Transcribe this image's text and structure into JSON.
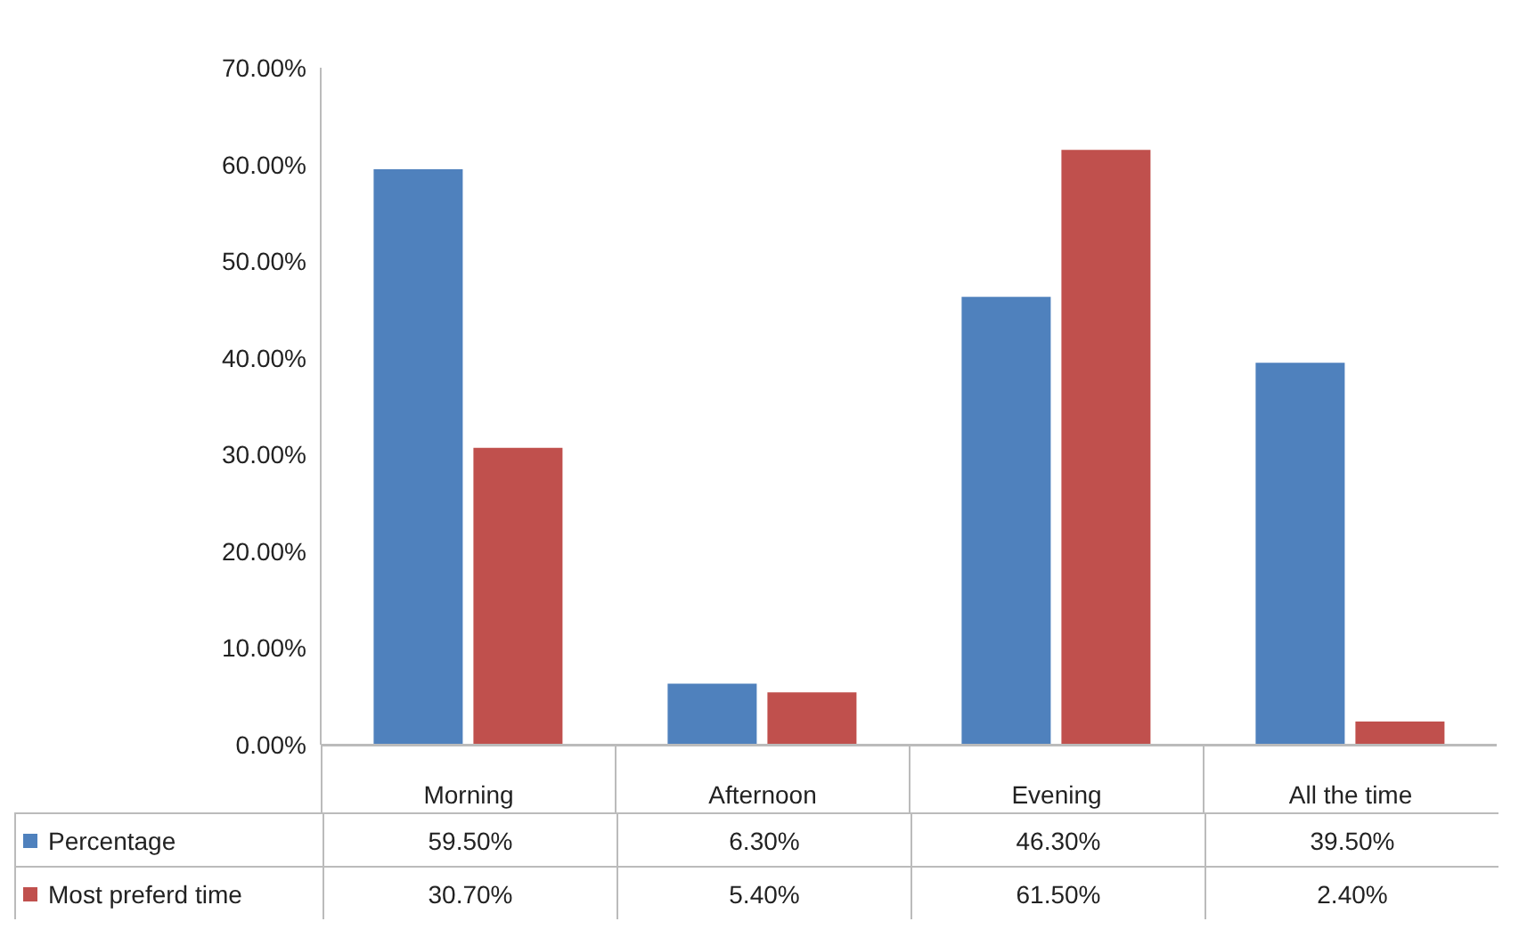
{
  "chart_data": {
    "type": "bar",
    "categories": [
      "Morning",
      "Afternoon",
      "Evening",
      "All the time"
    ],
    "series": [
      {
        "name": "Percentage",
        "color": "#4f81bd",
        "values": [
          59.5,
          6.3,
          46.3,
          39.5
        ],
        "value_labels": [
          "59.50%",
          "6.30%",
          "46.30%",
          "39.50%"
        ]
      },
      {
        "name": "Most preferd time",
        "color": "#c0504d",
        "values": [
          30.7,
          5.4,
          61.5,
          2.4
        ],
        "value_labels": [
          "30.70%",
          "5.40%",
          "61.50%",
          "2.40%"
        ]
      }
    ],
    "ylim": [
      0,
      70
    ],
    "yticks": [
      {
        "value": 0,
        "label": "0.00%"
      },
      {
        "value": 10,
        "label": "10.00%"
      },
      {
        "value": 20,
        "label": "20.00%"
      },
      {
        "value": 30,
        "label": "30.00%"
      },
      {
        "value": 40,
        "label": "40.00%"
      },
      {
        "value": 50,
        "label": "50.00%"
      },
      {
        "value": 60,
        "label": "60.00%"
      },
      {
        "value": 70,
        "label": "70.00%"
      }
    ],
    "grid": false,
    "legend": "bottom"
  }
}
